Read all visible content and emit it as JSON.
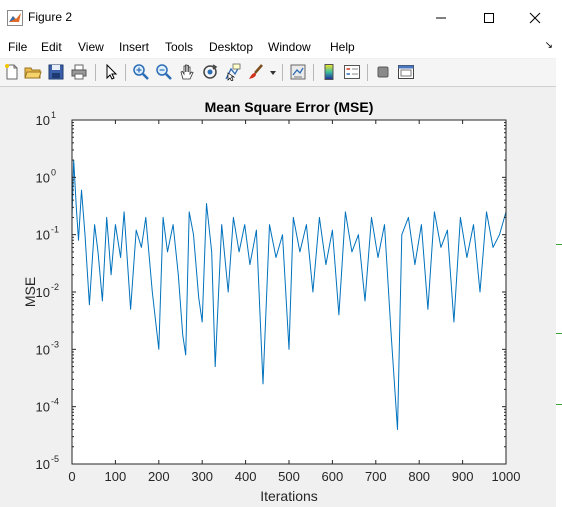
{
  "window": {
    "title": "Figure 2"
  },
  "menu": {
    "items": [
      "File",
      "Edit",
      "View",
      "Insert",
      "Tools",
      "Desktop",
      "Window",
      "Help"
    ]
  },
  "toolbar": {
    "icons": [
      "new-figure-icon",
      "open-file-icon",
      "save-icon",
      "print-icon",
      "pointer-icon",
      "zoom-in-icon",
      "zoom-out-icon",
      "pan-hand-icon",
      "rotate-3d-icon",
      "data-cursor-icon",
      "brush-icon",
      "brush-dropdown-icon",
      "link-plot-icon",
      "colorbar-icon",
      "legend-icon",
      "hide-plot-tools-icon",
      "show-plot-tools-icon"
    ]
  },
  "colors": {
    "line": "#0072bd",
    "axis": "#262626",
    "background": "#f0f0f0"
  },
  "chart_data": {
    "type": "line",
    "title": "Mean Square Error (MSE)",
    "xlabel": "Iterations",
    "ylabel": "MSE",
    "xlim": [
      0,
      1000
    ],
    "ylim": [
      1e-05,
      10
    ],
    "yscale": "log",
    "x_ticks": [
      "0",
      "100",
      "200",
      "300",
      "400",
      "500",
      "600",
      "700",
      "800",
      "900",
      "1000"
    ],
    "y_ticks": [
      {
        "base": "10",
        "exp": "1"
      },
      {
        "base": "10",
        "exp": "0"
      },
      {
        "base": "10",
        "exp": "-1"
      },
      {
        "base": "10",
        "exp": "-2"
      },
      {
        "base": "10",
        "exp": "-3"
      },
      {
        "base": "10",
        "exp": "-4"
      },
      {
        "base": "10",
        "exp": "-5"
      }
    ],
    "grid": false,
    "series": [
      {
        "x": [
          0,
          4,
          10,
          15,
          22,
          30,
          40,
          52,
          60,
          70,
          80,
          90,
          100,
          112,
          120,
          135,
          148,
          160,
          170,
          185,
          200,
          210,
          220,
          233,
          245,
          255,
          262,
          270,
          280,
          292,
          300,
          310,
          322,
          330,
          345,
          360,
          372,
          385,
          398,
          410,
          425,
          440,
          455,
          470,
          485,
          500,
          510,
          525,
          540,
          555,
          570,
          585,
          600,
          615,
          630,
          645,
          660,
          675,
          690,
          705,
          720,
          735,
          750,
          760,
          775,
          790,
          805,
          820,
          835,
          850,
          865,
          880,
          895,
          910,
          925,
          940,
          955,
          970,
          985,
          1000
        ],
        "values": [
          0.2,
          2.0,
          0.3,
          0.08,
          0.6,
          0.1,
          0.006,
          0.15,
          0.05,
          0.007,
          0.2,
          0.02,
          0.15,
          0.04,
          0.25,
          0.005,
          0.12,
          0.06,
          0.2,
          0.01,
          0.001,
          0.2,
          0.05,
          0.15,
          0.02,
          0.0018,
          0.0008,
          0.25,
          0.1,
          0.008,
          0.003,
          0.35,
          0.05,
          0.0005,
          0.15,
          0.01,
          0.2,
          0.05,
          0.15,
          0.03,
          0.12,
          0.00025,
          0.15,
          0.04,
          0.1,
          0.001,
          0.2,
          0.05,
          0.15,
          0.01,
          0.2,
          0.03,
          0.12,
          0.004,
          0.25,
          0.05,
          0.1,
          0.007,
          0.2,
          0.04,
          0.15,
          0.002,
          4e-05,
          0.1,
          0.2,
          0.03,
          0.15,
          0.005,
          0.25,
          0.06,
          0.12,
          0.003,
          0.2,
          0.04,
          0.15,
          0.01,
          0.25,
          0.06,
          0.1,
          0.25
        ]
      }
    ]
  }
}
